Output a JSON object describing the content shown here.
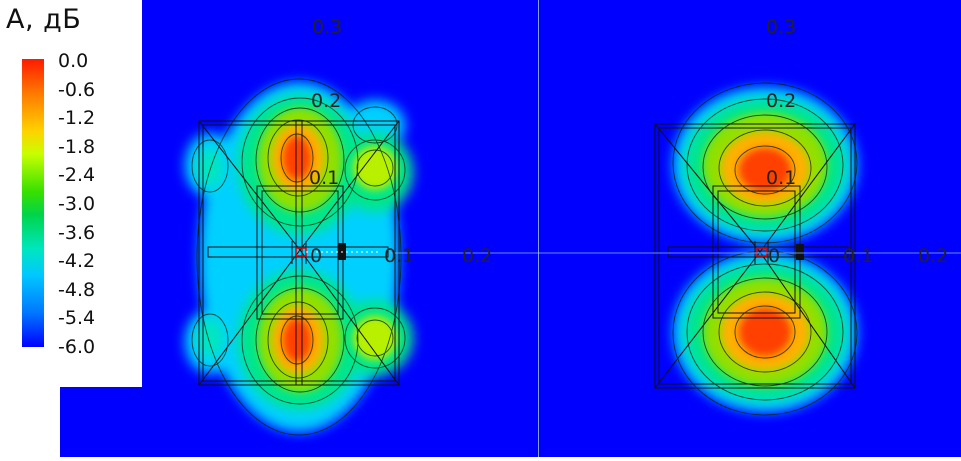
{
  "legend": {
    "title": "А, дБ",
    "ticks": [
      "0.0",
      "-0.6",
      "-1.2",
      "-1.8",
      "-2.4",
      "-3.0",
      "-3.6",
      "-4.2",
      "-4.8",
      "-5.4",
      "-6.0"
    ]
  },
  "left_panel": {
    "labels": {
      "top": "0.3",
      "y2": "0.2",
      "y1": "0.1",
      "center": "0",
      "x1": "0.1",
      "x2": "0.2"
    }
  },
  "right_panel": {
    "labels": {
      "top": "0.3",
      "y2": "0.2",
      "y1": "0.1",
      "center": "0",
      "x1": "0.1",
      "x2": "0.2"
    }
  },
  "colors": {
    "background": "#0000ff",
    "max": "#ff1a00",
    "mid": "#38e000",
    "low": "#00c8ff"
  }
}
